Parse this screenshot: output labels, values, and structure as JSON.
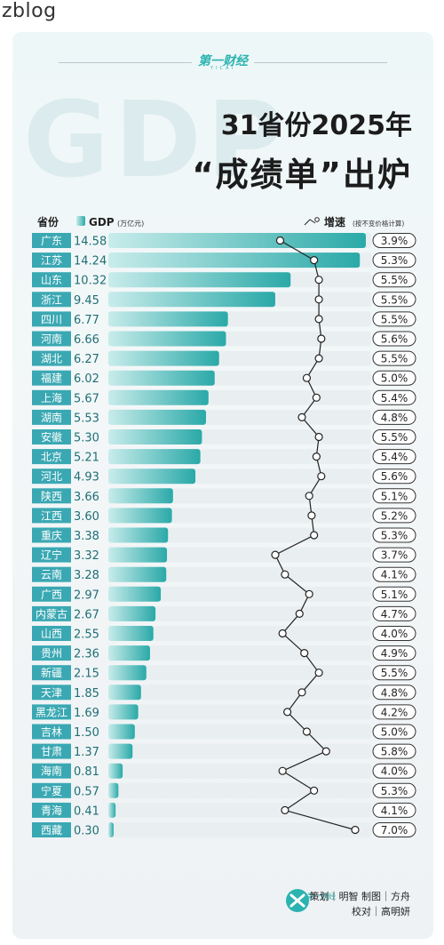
{
  "watermark": "zblog",
  "brand": {
    "logo": "第一财经",
    "sub": "YICAI"
  },
  "background_text": "GDP",
  "title_line1": "31省份2025年",
  "title_line2": "“成绩单”出炉",
  "header": {
    "province": "省份",
    "gdp": "GDP",
    "gdp_unit": "(万亿元)",
    "growth": "增速",
    "growth_note": "(按不变价格计算)"
  },
  "credits": {
    "line1": "策划｜明智  制图｜方舟",
    "line2": "校对｜高明妍"
  },
  "colors": {
    "bar_start": "#c8eceb",
    "bar_end": "#2aa9a8",
    "label_bg": "#3aa8b3",
    "line": "#222222"
  },
  "chart_data": {
    "type": "bar",
    "orientation": "horizontal",
    "title": "31省份2025年“成绩单”出炉",
    "categories": [
      "广东",
      "江苏",
      "山东",
      "浙江",
      "四川",
      "河南",
      "湖北",
      "福建",
      "上海",
      "湖南",
      "安徽",
      "北京",
      "河北",
      "陕西",
      "江西",
      "重庆",
      "辽宁",
      "云南",
      "广西",
      "内蒙古",
      "山西",
      "贵州",
      "新疆",
      "天津",
      "黑龙江",
      "吉林",
      "甘肃",
      "海南",
      "宁夏",
      "青海",
      "西藏"
    ],
    "series": [
      {
        "name": "GDP (万亿元)",
        "values": [
          14.58,
          14.24,
          10.32,
          9.45,
          6.77,
          6.66,
          6.27,
          6.02,
          5.67,
          5.53,
          5.3,
          5.21,
          4.93,
          3.66,
          3.6,
          3.38,
          3.32,
          3.28,
          2.97,
          2.67,
          2.55,
          2.36,
          2.15,
          1.85,
          1.69,
          1.5,
          1.37,
          0.81,
          0.57,
          0.41,
          0.3
        ],
        "labels": [
          "14.58",
          "14.24",
          "10.32",
          "9.45",
          "6.77",
          "6.66",
          "6.27",
          "6.02",
          "5.67",
          "5.53",
          "5.30",
          "5.21",
          "4.93",
          "3.66",
          "3.60",
          "3.38",
          "3.32",
          "3.28",
          "2.97",
          "2.67",
          "2.55",
          "2.36",
          "2.15",
          "1.85",
          "1.69",
          "1.50",
          "1.37",
          "0.81",
          "0.57",
          "0.41",
          "0.30"
        ]
      },
      {
        "name": "增速 (按不变价格计算)",
        "values": [
          3.9,
          5.3,
          5.5,
          5.5,
          5.5,
          5.6,
          5.5,
          5.0,
          5.4,
          4.8,
          5.5,
          5.4,
          5.6,
          5.1,
          5.2,
          5.3,
          3.7,
          4.1,
          5.1,
          4.7,
          4.0,
          4.9,
          5.5,
          4.8,
          4.2,
          5.0,
          5.8,
          4.0,
          5.3,
          4.1,
          7.0
        ],
        "labels": [
          "3.9%",
          "5.3%",
          "5.5%",
          "5.5%",
          "5.5%",
          "5.6%",
          "5.5%",
          "5.0%",
          "5.4%",
          "4.8%",
          "5.5%",
          "5.4%",
          "5.6%",
          "5.1%",
          "5.2%",
          "5.3%",
          "3.7%",
          "4.1%",
          "5.1%",
          "4.7%",
          "4.0%",
          "4.9%",
          "5.5%",
          "4.8%",
          "4.2%",
          "5.0%",
          "5.8%",
          "4.0%",
          "5.3%",
          "4.1%",
          "7.0%"
        ]
      }
    ],
    "xlim": [
      0,
      14.58
    ],
    "growth_range": [
      3.7,
      7.0
    ],
    "grid": false
  }
}
